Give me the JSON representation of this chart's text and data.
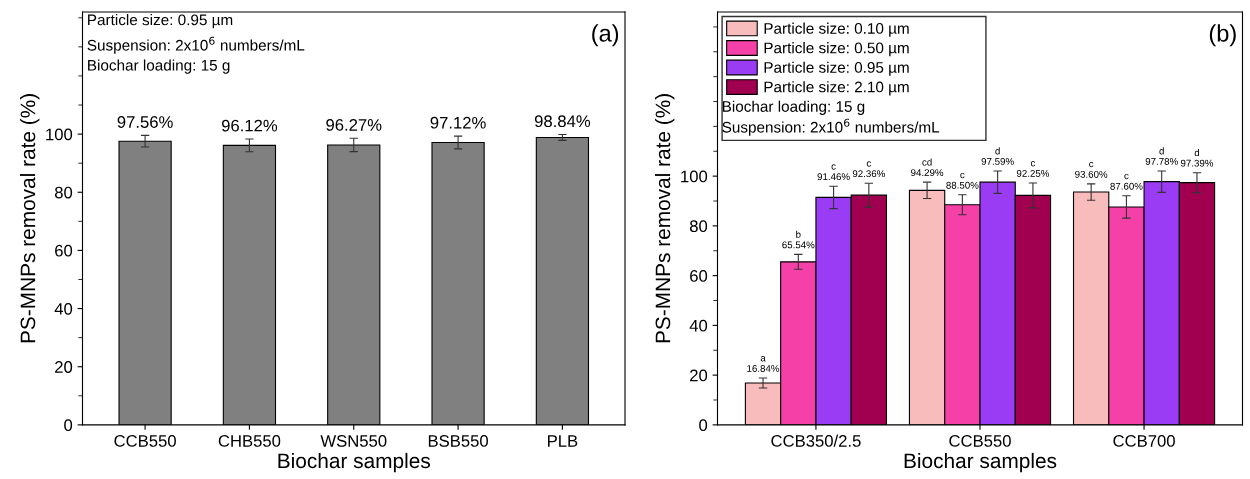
{
  "chart_data": [
    {
      "type": "bar",
      "xlabel": "Biochar samples",
      "ylabel": "PS-MNPs removal rate (%)",
      "categories": [
        "CCB550",
        "CHB550",
        "WSN550",
        "BSB550",
        "PLB"
      ],
      "values": [
        97.56,
        96.12,
        96.27,
        97.12,
        98.84
      ],
      "color": "#808080",
      "errors": [
        2,
        2.2,
        2.3,
        2.2,
        1
      ],
      "value_labels": [
        "97.56%",
        "96.12%",
        "96.27%",
        "97.12%",
        "98.84%"
      ],
      "ylim": [
        0,
        142
      ],
      "yticks": [
        0,
        20,
        40,
        60,
        80,
        100
      ],
      "grid": false,
      "legend": false,
      "annotations": [
        "Particle size: 0.95 µm",
        "Suspension: 2x10$^{6}$ numbers/mL",
        "Biochar loading: 15 g",
        "(a)"
      ]
    },
    {
      "type": "bar",
      "xlabel": "Biochar samples",
      "ylabel": "PS-MNPs removal rate (%)",
      "categories": [
        "CCB350/2.5",
        "CCB550",
        "CCB700"
      ],
      "series": [
        {
          "name": "Particle size: 0.10 µm",
          "color": "#f9bcbc",
          "values": [
            16.84,
            94.29,
            93.6
          ],
          "errors": [
            2,
            3.3,
            3.3
          ],
          "value_labels": [
            "a\n16.84%",
            "cd\n94.29%",
            "c\n93.60%"
          ]
        },
        {
          "name": "Particle size: 0.50 µm",
          "color": "#f540a8",
          "values": [
            65.54,
            88.5,
            87.6
          ],
          "errors": [
            3,
            4,
            4.5
          ],
          "value_labels": [
            "b\n65.54%",
            "c\n88.50%",
            "c\n87.60%"
          ]
        },
        {
          "name": "Particle size: 0.95 µm",
          "color": "#9b3cf5",
          "values": [
            91.46,
            97.59,
            97.78
          ],
          "errors": [
            4.5,
            4.5,
            4.3
          ],
          "value_labels": [
            "c\n91.46%",
            "d\n97.59%",
            "d\n97.78%"
          ]
        },
        {
          "name": "Particle size: 2.10 µm",
          "color": "#a0004f",
          "values": [
            92.36,
            92.25,
            97.39
          ],
          "errors": [
            4.8,
            5,
            4
          ],
          "value_labels": [
            "c\n92.36%",
            "c\n92.25%",
            "d\n97.39%"
          ]
        }
      ],
      "ylim": [
        0,
        166
      ],
      "yticks": [
        0,
        20,
        40,
        60,
        80,
        100
      ],
      "grid": false,
      "legend": "top left",
      "annotations": [
        "Biochar loading: 15 g",
        "Suspension: 2x10$^{6}$ numbers/mL",
        "(b)"
      ]
    }
  ]
}
